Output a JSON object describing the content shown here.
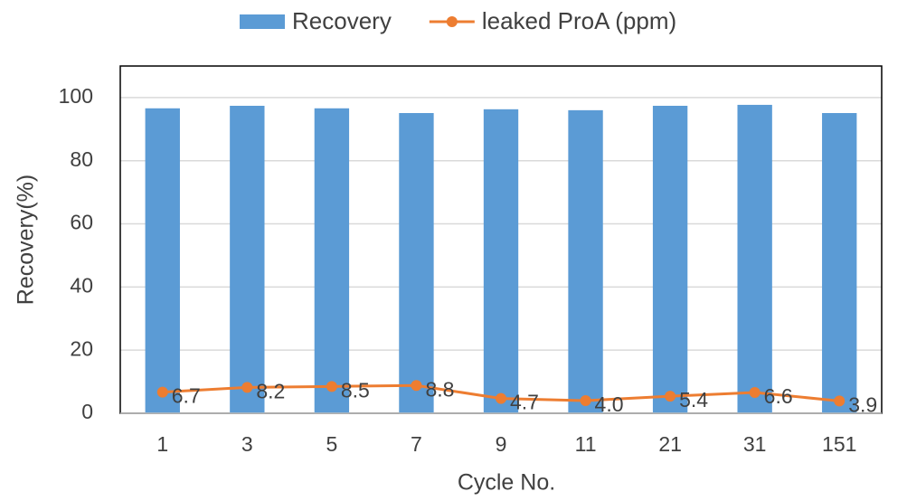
{
  "chart_data": {
    "type": "bar_line",
    "x_label": "Cycle No.",
    "y_label": "Recovery(%)",
    "categories": [
      "1",
      "3",
      "5",
      "7",
      "9",
      "11",
      "21",
      "31",
      "151"
    ],
    "series": [
      {
        "name": "Recovery",
        "type": "bar",
        "color": "#5b9bd5",
        "values": [
          96.6,
          97.4,
          96.6,
          95.1,
          96.3,
          96.0,
          97.4,
          97.7,
          95.1
        ]
      },
      {
        "name": "leaked ProA (ppm)",
        "type": "line",
        "color": "#ed7d31",
        "values": [
          6.7,
          8.2,
          8.5,
          8.8,
          4.7,
          4.0,
          5.4,
          6.6,
          3.9
        ],
        "value_labels": [
          "6.7",
          "8.2",
          "8.5",
          "8.8",
          "4.7",
          "4.0",
          "5.4",
          "6.6",
          "3.9"
        ]
      }
    ],
    "ylim": [
      0,
      110
    ],
    "yticks": [
      0,
      20,
      40,
      60,
      80,
      100
    ],
    "grid": true,
    "legend": "top"
  }
}
